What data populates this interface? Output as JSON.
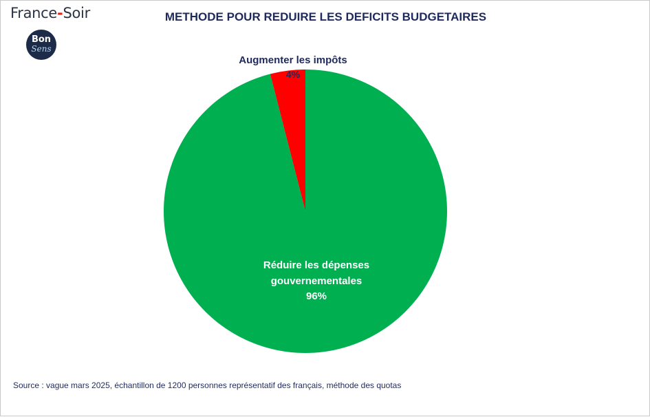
{
  "brand": {
    "name_part1": "France",
    "name_dash": "-",
    "name_part2": "Soir",
    "badge_line1": "Bon",
    "badge_line2": "Sens"
  },
  "colors": {
    "green": "#00b050",
    "red": "#ff0000",
    "label_dark": "#1f2a5c",
    "label_light": "#ffffff"
  },
  "chart_data": {
    "type": "pie",
    "title": "METHODE POUR REDUIRE LES DEFICITS BUDGETAIRES",
    "slices": [
      {
        "label": "Augmenter les impôts",
        "value": 4,
        "display": "4%",
        "color": "#ff0000"
      },
      {
        "label": "Réduire les dépenses gouvernementales",
        "label_lines": [
          "Réduire les dépenses",
          "gouvernementales"
        ],
        "value": 96,
        "display": "96%",
        "color": "#00b050"
      }
    ]
  },
  "footer": {
    "source": "Source : vague mars 2025, échantillon de 1200 personnes représentatif des français, méthode des quotas"
  }
}
